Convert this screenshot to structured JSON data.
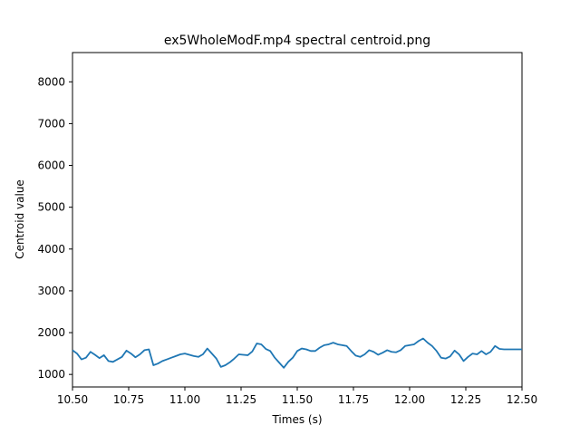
{
  "chart_data": {
    "type": "line",
    "title": "ex5WholeModF.mp4 spectral centroid.png",
    "xlabel": "Times (s)",
    "ylabel": "Centroid value",
    "xlim": [
      10.5,
      12.5
    ],
    "ylim": [
      700,
      8700
    ],
    "grid": false,
    "x_ticks": [
      "10.50",
      "10.75",
      "11.00",
      "11.25",
      "11.50",
      "11.75",
      "12.00",
      "12.25",
      "12.50"
    ],
    "y_ticks": [
      "1000",
      "2000",
      "3000",
      "4000",
      "5000",
      "6000",
      "7000",
      "8000"
    ],
    "series": [
      {
        "color": "#1f77b4",
        "x": [
          10.5,
          10.52,
          10.54,
          10.56,
          10.58,
          10.6,
          10.62,
          10.64,
          10.66,
          10.68,
          10.7,
          10.72,
          10.74,
          10.76,
          10.78,
          10.8,
          10.82,
          10.84,
          10.86,
          10.88,
          10.9,
          10.92,
          10.94,
          10.96,
          10.98,
          11.0,
          11.02,
          11.04,
          11.06,
          11.08,
          11.1,
          11.12,
          11.14,
          11.16,
          11.18,
          11.2,
          11.22,
          11.24,
          11.26,
          11.28,
          11.3,
          11.32,
          11.34,
          11.36,
          11.38,
          11.4,
          11.42,
          11.44,
          11.46,
          11.48,
          11.5,
          11.52,
          11.54,
          11.56,
          11.58,
          11.6,
          11.62,
          11.64,
          11.66,
          11.68,
          11.7,
          11.72,
          11.74,
          11.76,
          11.78,
          11.8,
          11.82,
          11.84,
          11.86,
          11.88,
          11.9,
          11.92,
          11.94,
          11.96,
          11.98,
          12.0,
          12.02,
          12.04,
          12.06,
          12.08,
          12.1,
          12.12,
          12.14,
          12.16,
          12.18,
          12.2,
          12.22,
          12.24,
          12.26,
          12.28,
          12.3,
          12.32,
          12.34,
          12.36,
          12.38,
          12.4,
          12.42,
          12.44,
          12.46,
          12.48,
          12.5
        ],
        "y": [
          1580,
          1500,
          1360,
          1400,
          1540,
          1470,
          1390,
          1460,
          1320,
          1300,
          1360,
          1420,
          1570,
          1500,
          1410,
          1480,
          1580,
          1600,
          1220,
          1260,
          1320,
          1360,
          1400,
          1440,
          1480,
          1500,
          1470,
          1440,
          1420,
          1480,
          1620,
          1500,
          1380,
          1180,
          1220,
          1290,
          1380,
          1480,
          1470,
          1460,
          1550,
          1740,
          1720,
          1610,
          1560,
          1400,
          1280,
          1160,
          1300,
          1400,
          1560,
          1620,
          1600,
          1560,
          1560,
          1640,
          1700,
          1720,
          1760,
          1720,
          1700,
          1680,
          1560,
          1450,
          1420,
          1480,
          1580,
          1540,
          1470,
          1520,
          1580,
          1540,
          1530,
          1580,
          1680,
          1700,
          1720,
          1800,
          1860,
          1760,
          1680,
          1560,
          1400,
          1380,
          1430,
          1570,
          1480,
          1320,
          1420,
          1500,
          1480,
          1560,
          1480,
          1540,
          1680,
          1610,
          1600,
          1600,
          1600,
          1600,
          1600
        ]
      }
    ]
  }
}
